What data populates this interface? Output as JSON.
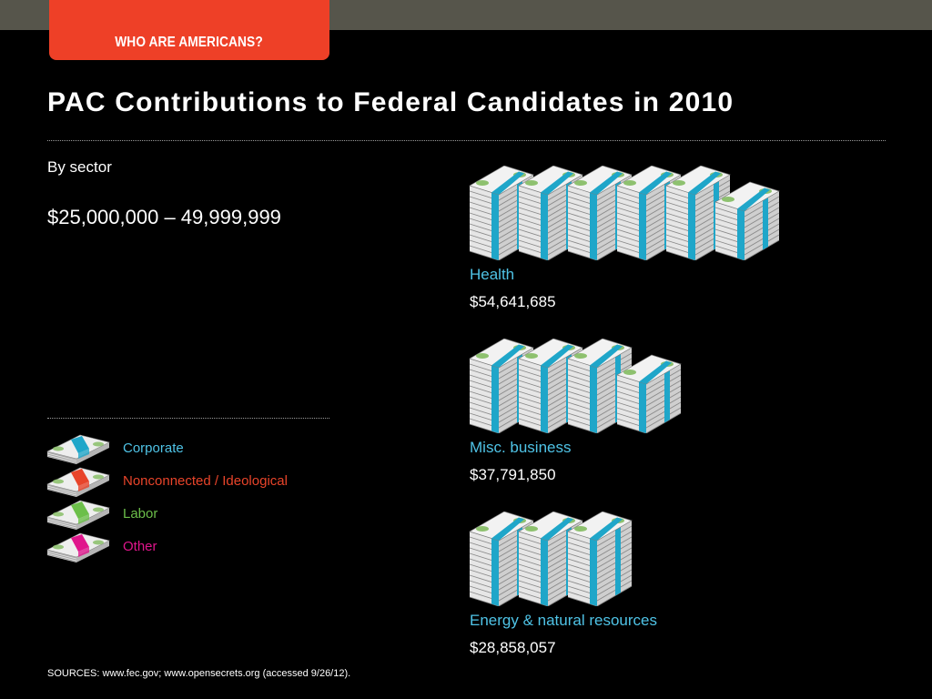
{
  "header": {
    "section_tab": "WHO ARE AMERICANS?",
    "title": "PAC Contributions to Federal Candidates in 2010",
    "subtitle": "By sector",
    "unit_label": "$25,000,000 – 49,999,999"
  },
  "colors": {
    "accent_tab": "#ee4027",
    "top_strip": "#56554b",
    "corporate": "#1fa6c9",
    "nonconnected": "#e8442a",
    "labor": "#6cbf4a",
    "other": "#e0158c",
    "sector_label": "#4fc3e6"
  },
  "legend": [
    {
      "label": "Corporate",
      "color": "#1fa6c9",
      "text_color": "#4fc3e6",
      "icon": "corporate-money-stack-icon"
    },
    {
      "label": "Nonconnected / Ideological",
      "color": "#e8442a",
      "text_color": "#e8442a",
      "icon": "nonconnected-money-stack-icon"
    },
    {
      "label": "Labor",
      "color": "#6cbf4a",
      "text_color": "#6cbf4a",
      "icon": "labor-money-stack-icon"
    },
    {
      "label": "Other",
      "color": "#e0158c",
      "text_color": "#e0158c",
      "icon": "other-money-stack-icon"
    }
  ],
  "chart_data": {
    "type": "bar",
    "title": "PAC Contributions to Federal Candidates in 2010",
    "subtitle": "By sector",
    "unit": "$25,000,000 – 49,999,999",
    "categories": [
      "Health",
      "Misc. business",
      "Energy & natural resources"
    ],
    "values": [
      54641685,
      37791850,
      28858057
    ],
    "value_labels": [
      "$54,641,685",
      "$37,791,850",
      "$28,858,057"
    ],
    "stack_counts": [
      6,
      4,
      3
    ],
    "partial_last_stack": [
      true,
      true,
      false
    ],
    "series": [
      {
        "name": "Corporate",
        "values": [
          54641685,
          37791850,
          28858057
        ]
      }
    ]
  },
  "footer": {
    "sources": "SOURCES: www.fec.gov; www.opensecrets.org (accessed 9/26/12)."
  }
}
